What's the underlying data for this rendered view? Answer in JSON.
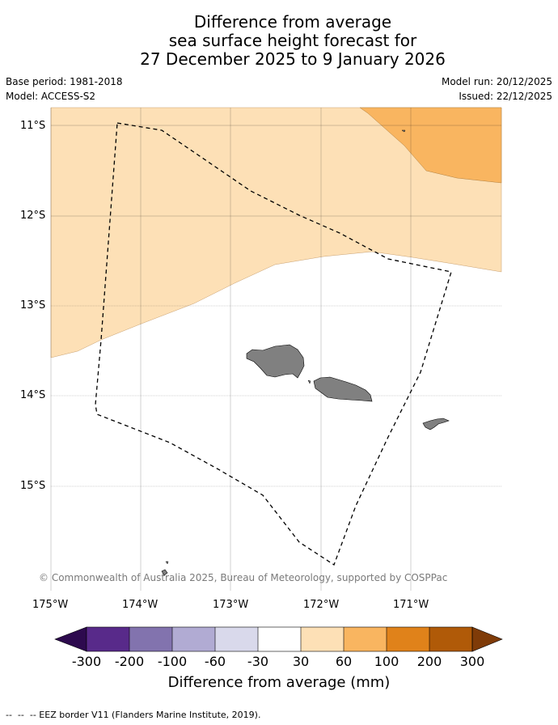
{
  "title": {
    "line1": "Difference from average",
    "line2": "sea surface height forecast for",
    "line3": "27 December 2025 to 9 January 2026"
  },
  "meta": {
    "base_period": "Base period: 1981-2018",
    "model": "Model: ACCESS-S2",
    "model_run": "Model run: 20/12/2025",
    "issued": "Issued: 22/12/2025"
  },
  "axes": {
    "lat_labels": [
      "11°S",
      "12°S",
      "13°S",
      "14°S",
      "15°S"
    ],
    "lon_labels": [
      "175°W",
      "174°W",
      "173°W",
      "172°W",
      "171°W"
    ]
  },
  "copyright": "© Commonwealth of Australia 2025, Bureau of Meteorology, supported by COSPPac",
  "colorbar": {
    "label": "Difference from average (mm)",
    "ticks": [
      "-300",
      "-200",
      "-100",
      "-60",
      "-30",
      "30",
      "60",
      "100",
      "200",
      "300"
    ],
    "colors": {
      "under": "#2d0a4e",
      "bins": [
        "#582a8a",
        "#8273ae",
        "#b1abd3",
        "#d9d9eb",
        "#ffffff",
        "#fde0b6",
        "#f9b560",
        "#e0821a",
        "#b05a08"
      ],
      "over": "#7f3b08"
    }
  },
  "map_colors": {
    "band_30_60": "#fde0b6",
    "band_60_100": "#f9b560",
    "land": "#808080"
  },
  "footer": "--  --  -- EEZ border V11 (Flanders Marine Institute, 2019)."
}
